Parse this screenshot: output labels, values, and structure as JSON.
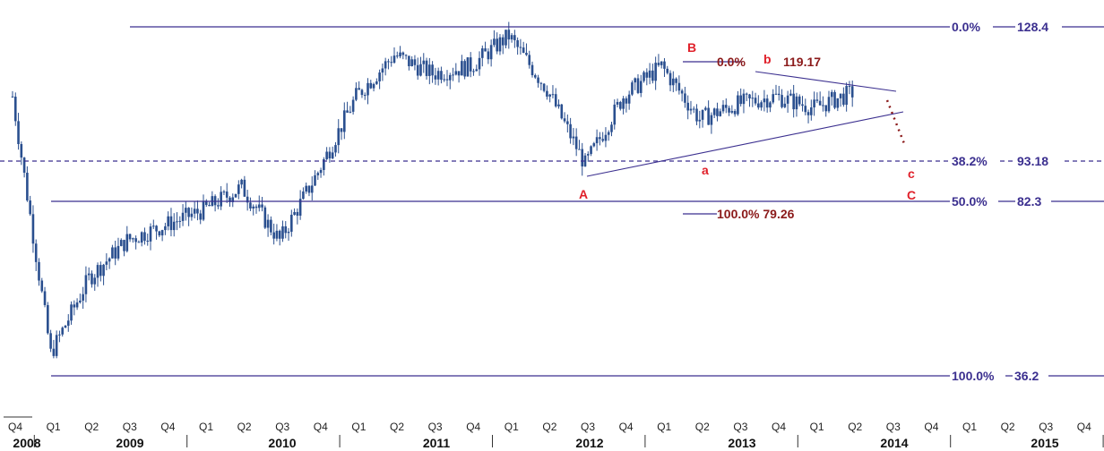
{
  "chart_data": {
    "type": "candlestick",
    "price_series": {
      "date": [
        "2008-Q4",
        "2009-Q1",
        "2009-Q2",
        "2009-Q3",
        "2009-Q4",
        "2010-Q1",
        "2010-Q2",
        "2010-Q3",
        "2010-Q4",
        "2011-Q1",
        "2011-Q2",
        "2011-Q3",
        "2011-Q4",
        "2012-Q1",
        "2012-Q2",
        "2012-Q3",
        "2012-Q4",
        "2013-Q1",
        "2013-Q2",
        "2013-Q3",
        "2013-Q4",
        "2014-Q1",
        "2014-Q2"
      ],
      "value": [
        110,
        42,
        62,
        72,
        76,
        80,
        86,
        72,
        90,
        110,
        121,
        116,
        118,
        126,
        112,
        92,
        110,
        118,
        104,
        108,
        110,
        107,
        111
      ]
    },
    "time_axis": {
      "quarter_ticks": [
        "Q4",
        "Q1",
        "Q2",
        "Q3",
        "Q4",
        "Q1",
        "Q2",
        "Q3",
        "Q4",
        "Q1",
        "Q2",
        "Q3",
        "Q4",
        "Q1",
        "Q2",
        "Q3",
        "Q4",
        "Q1",
        "Q2",
        "Q3",
        "Q4",
        "Q1",
        "Q2",
        "Q3",
        "Q4",
        "Q1",
        "Q2",
        "Q3",
        "Q4"
      ],
      "years": [
        "2008",
        "2009",
        "2010",
        "2011",
        "2012",
        "2013",
        "2014",
        "2015"
      ]
    },
    "ylim": [
      30,
      133
    ],
    "fib_levels": [
      {
        "label": "0.0%",
        "value": 128.4,
        "value_text": "128.4",
        "style": "solid"
      },
      {
        "label": "38.2%",
        "value": 93.18,
        "value_text": "93.18",
        "style": "dashed"
      },
      {
        "label": "50.0%",
        "value": 82.3,
        "value_text": "82.3",
        "style": "solid"
      },
      {
        "label": "100.0%",
        "value": 36.2,
        "value_text": "36.2",
        "style": "solid"
      }
    ],
    "inner_fibs": [
      {
        "text": "0.0%",
        "value_text": "119.17"
      },
      {
        "text": "100.0% 79.26"
      }
    ],
    "wave_labels": [
      "A",
      "B",
      "a",
      "b",
      "c",
      "C"
    ],
    "colors": {
      "candles": "#2a4f8f",
      "levels": "#3b2f8f",
      "fib_text": "#8b1a1a",
      "wave_labels": "#e0202a",
      "projection": "#8b1a1a"
    }
  }
}
